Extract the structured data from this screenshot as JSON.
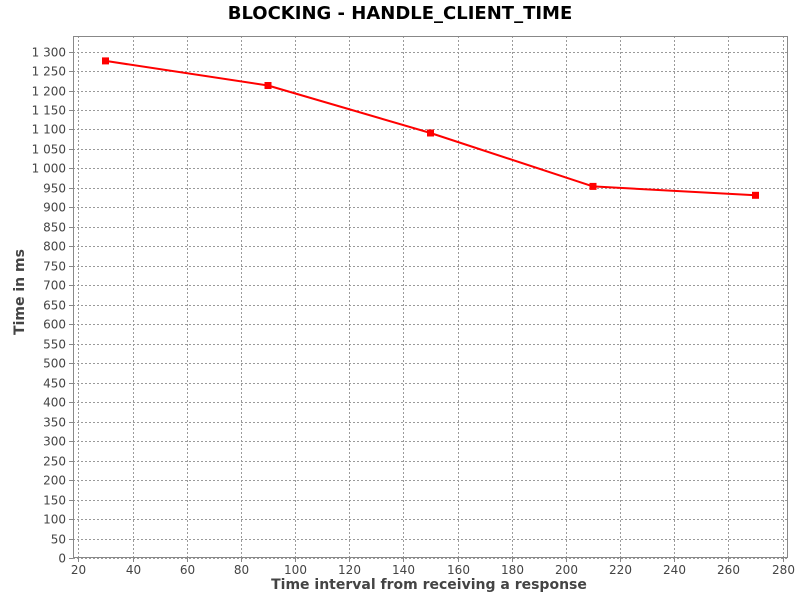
{
  "chart_data": {
    "type": "line",
    "title": "BLOCKING - HANDLE_CLIENT_TIME",
    "xlabel": "Time interval from receiving a response",
    "ylabel": "Time in ms",
    "xlim": [
      18,
      282
    ],
    "ylim": [
      0,
      1340
    ],
    "x_ticks": [
      20,
      40,
      60,
      80,
      100,
      120,
      140,
      160,
      180,
      200,
      220,
      240,
      260,
      280
    ],
    "x_tick_labels": [
      "20",
      "40",
      "60",
      "80",
      "100",
      "120",
      "140",
      "160",
      "180",
      "200",
      "220",
      "240",
      "260",
      "280"
    ],
    "y_ticks": [
      0,
      50,
      100,
      150,
      200,
      250,
      300,
      350,
      400,
      450,
      500,
      550,
      600,
      650,
      700,
      750,
      800,
      850,
      900,
      950,
      1000,
      1050,
      1100,
      1150,
      1200,
      1250,
      1300
    ],
    "y_tick_labels": [
      "0",
      "50",
      "100",
      "150",
      "200",
      "250",
      "300",
      "350",
      "400",
      "450",
      "500",
      "550",
      "600",
      "650",
      "700",
      "750",
      "800",
      "850",
      "900",
      "950",
      "1 000",
      "1 050",
      "1 100",
      "1 150",
      "1 200",
      "1 250",
      "1 300"
    ],
    "grid": true,
    "legend": "none",
    "series": [
      {
        "color": "#ff0000",
        "marker": "square",
        "x": [
          30,
          90,
          150,
          210,
          270
        ],
        "y": [
          1276,
          1213,
          1091,
          954,
          931
        ]
      }
    ]
  }
}
